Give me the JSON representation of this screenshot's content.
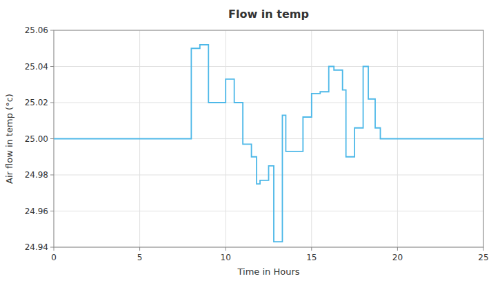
{
  "chart_data": {
    "type": "line",
    "title": "Flow in temp",
    "xlabel": "Time in Hours",
    "ylabel": "Air flow in temp (°c)",
    "color": "#4db8e8",
    "grid": true,
    "xlim": [
      0,
      25
    ],
    "ylim": [
      24.94,
      25.06
    ],
    "xticks": [
      0,
      5,
      10,
      15,
      20,
      25
    ],
    "yticks": [
      24.94,
      24.96,
      24.98,
      {
        "value": 25.0,
        "label": "25.00"
      },
      25.02,
      25.04,
      25.06
    ],
    "x": [
      0,
      8.0,
      8.0,
      8.5,
      8.5,
      9.0,
      9.0,
      10.0,
      10.0,
      10.5,
      10.5,
      11.0,
      11.0,
      11.5,
      11.5,
      11.8,
      11.8,
      12.0,
      12.0,
      12.5,
      12.5,
      12.8,
      12.8,
      13.0,
      13.0,
      13.3,
      13.3,
      13.5,
      13.5,
      14.0,
      14.0,
      14.5,
      14.5,
      15.0,
      15.0,
      15.5,
      15.5,
      16.0,
      16.0,
      16.3,
      16.3,
      16.8,
      16.8,
      17.0,
      17.0,
      17.5,
      17.5,
      18.0,
      18.0,
      18.3,
      18.3,
      18.7,
      18.7,
      19.0,
      19.0,
      20.0,
      20.0,
      25.0
    ],
    "values": [
      25.0,
      25.0,
      25.05,
      25.05,
      25.052,
      25.052,
      25.02,
      25.02,
      25.033,
      25.033,
      25.02,
      25.02,
      24.997,
      24.997,
      24.99,
      24.99,
      24.975,
      24.975,
      24.977,
      24.977,
      24.985,
      24.985,
      24.943,
      24.943,
      24.943,
      24.943,
      25.013,
      25.013,
      24.993,
      24.993,
      24.993,
      24.993,
      25.012,
      25.012,
      25.025,
      25.025,
      25.026,
      25.026,
      25.04,
      25.04,
      25.038,
      25.038,
      25.027,
      25.027,
      24.99,
      24.99,
      25.006,
      25.006,
      25.04,
      25.04,
      25.022,
      25.022,
      25.006,
      25.006,
      25.0,
      25.0,
      25.0,
      25.0
    ]
  }
}
